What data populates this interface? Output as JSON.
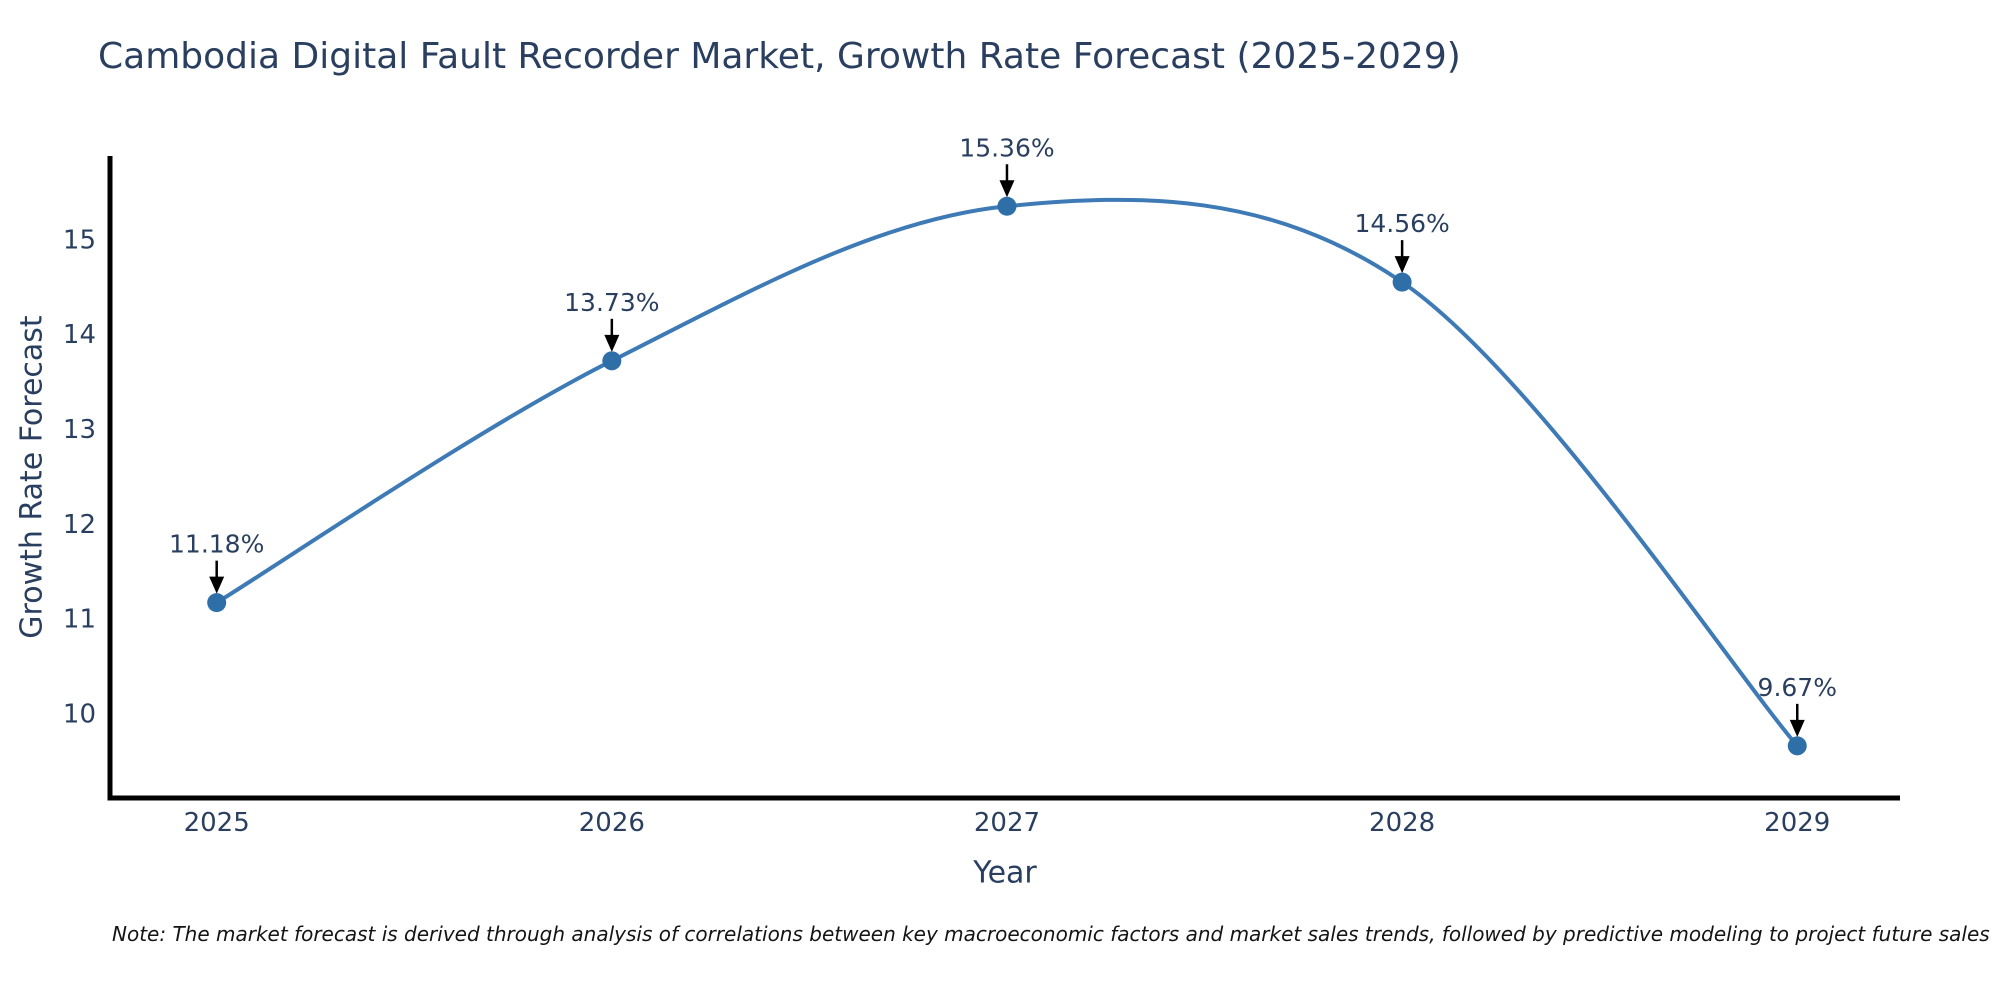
{
  "title": "Cambodia Digital Fault Recorder Market, Growth Rate Forecast (2025-2029)",
  "note": "Note: The market forecast is derived through analysis of correlations between key macroeconomic factors and market sales trends, followed by predictive modeling to project future sales",
  "chart_data": {
    "type": "line",
    "title": "Cambodia Digital Fault Recorder Market, Growth Rate Forecast (2025-2029)",
    "x": [
      2025,
      2026,
      2027,
      2028,
      2029
    ],
    "series": [
      {
        "name": "Growth Rate Forecast",
        "values": [
          11.18,
          13.73,
          15.36,
          14.56,
          9.67
        ]
      }
    ],
    "point_labels": [
      "11.18%",
      "13.73%",
      "15.36%",
      "14.56%",
      "9.67%"
    ],
    "xlabel": "Year",
    "ylabel": "Growth Rate Forecast",
    "xticks": [
      2025,
      2026,
      2027,
      2028,
      2029
    ],
    "yticks": [
      15,
      14,
      13,
      12,
      11,
      10
    ],
    "xlim": [
      2024.73,
      2029.26
    ],
    "ylim": [
      9.12,
      15.89
    ],
    "line_shape": "spline",
    "grid": false,
    "legend": "none",
    "colors": {
      "line": "#3e7bb6",
      "marker": "#2f6fa8",
      "axis": "#000000",
      "text": "#2a3f5f",
      "annotation": "#2a3f5f",
      "note": "#141414"
    }
  }
}
